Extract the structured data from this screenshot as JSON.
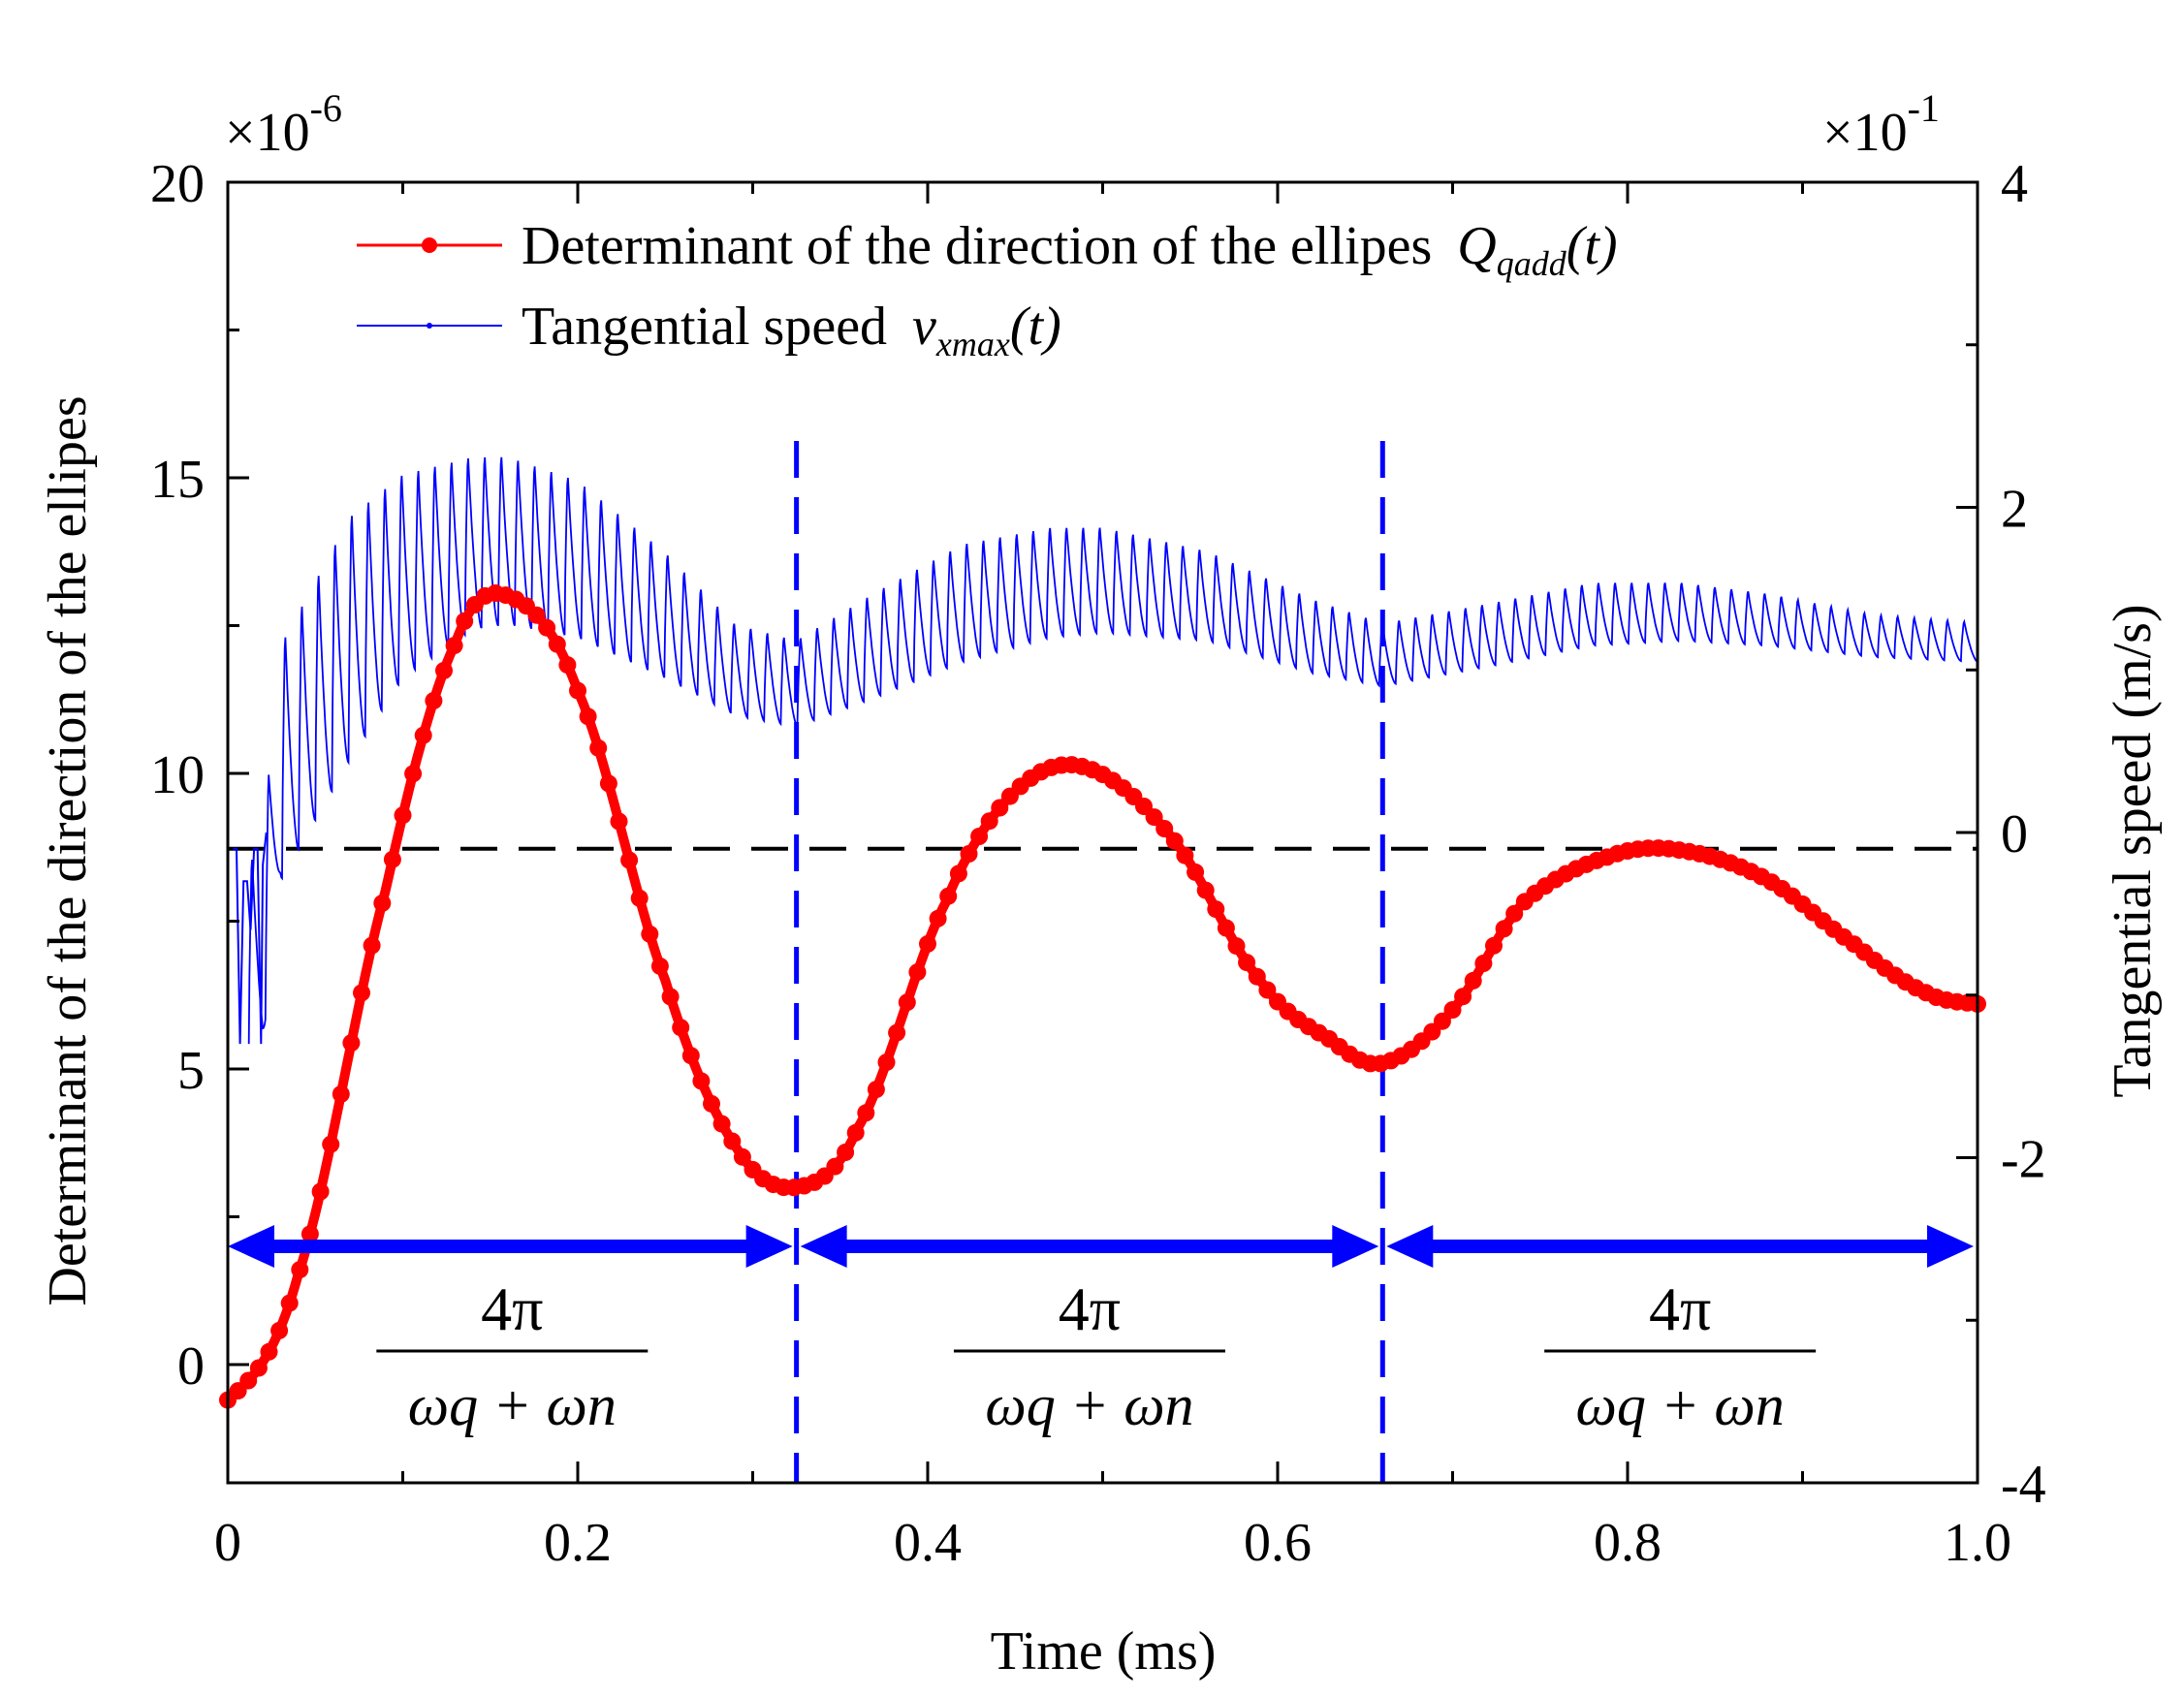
{
  "chart_data": {
    "type": "line",
    "x_axis": {
      "label": "Time (ms)",
      "range": [
        0,
        1.0
      ],
      "ticks": [
        0,
        0.2,
        0.4,
        0.6,
        0.8,
        1.0
      ],
      "tick_labels": [
        "0",
        "0.2",
        "0.4",
        "0.6",
        "0.8",
        "1.0"
      ]
    },
    "y_axis_left": {
      "label": "Determinant of the direction of the ellipes",
      "range": [
        -2,
        20
      ],
      "ticks": [
        0,
        5,
        10,
        15,
        20
      ],
      "tick_labels": [
        "0",
        "5",
        "10",
        "15",
        "20"
      ],
      "multiplier_base": "×10",
      "multiplier_exp": "-6"
    },
    "y_axis_right": {
      "label": "Tangential speed (m/s)",
      "range": [
        -4,
        4
      ],
      "ticks": [
        -4,
        -2,
        0,
        2,
        4
      ],
      "tick_labels": [
        "-4",
        "-2",
        "0",
        "2",
        "4"
      ],
      "multiplier_base": "×10",
      "multiplier_exp": "-1"
    },
    "legend": [
      {
        "text": "Determinant of the direction of the ellipes",
        "symbol": "Q",
        "subscript": "qadd",
        "arg": "(t)",
        "color": "#ff0000"
      },
      {
        "text": "Tangential speed",
        "symbol": "v",
        "subscript": "xmax",
        "arg": "(t)",
        "color": "#0000ff"
      }
    ],
    "series": [
      {
        "name": "Q_qadd(t)",
        "axis": "left",
        "color": "#ff0000",
        "x": [
          0.0,
          0.04,
          0.09,
          0.13,
          0.16,
          0.2,
          0.25,
          0.29,
          0.325,
          0.36,
          0.41,
          0.45,
          0.49,
          0.54,
          0.59,
          0.63,
          0.66,
          0.7,
          0.74,
          0.79,
          0.83,
          0.88,
          0.93,
          0.97,
          1.0
        ],
        "y": [
          -0.6,
          1.5,
          8.0,
          12.2,
          13.0,
          11.4,
          6.5,
          3.7,
          3.0,
          4.0,
          7.8,
          9.7,
          10.1,
          8.9,
          6.5,
          5.5,
          5.1,
          6.0,
          7.8,
          8.6,
          8.7,
          8.2,
          7.1,
          6.3,
          6.1
        ]
      },
      {
        "name": "v_xmax(t)",
        "axis": "right",
        "color": "#0000ff",
        "oscillation_period_ms": 0.0095,
        "x": [
          0.0,
          0.01,
          0.02,
          0.03,
          0.07,
          0.1,
          0.14,
          0.16,
          0.2,
          0.25,
          0.29,
          0.325,
          0.37,
          0.42,
          0.47,
          0.5,
          0.56,
          0.62,
          0.66,
          0.72,
          0.78,
          0.83,
          0.88,
          0.94,
          1.0
        ],
        "lower": [
          -1.3,
          -1.3,
          -1.3,
          -0.3,
          0.45,
          0.95,
          1.25,
          1.28,
          1.2,
          0.95,
          0.72,
          0.65,
          0.83,
          1.05,
          1.2,
          1.23,
          1.18,
          0.98,
          0.9,
          1.02,
          1.15,
          1.18,
          1.15,
          1.08,
          1.05
        ],
        "upper": [
          -0.5,
          -0.2,
          0.0,
          1.2,
          2.0,
          2.25,
          2.35,
          2.35,
          2.2,
          1.75,
          1.3,
          1.2,
          1.5,
          1.8,
          1.9,
          1.9,
          1.75,
          1.45,
          1.3,
          1.42,
          1.55,
          1.55,
          1.48,
          1.35,
          1.3
        ]
      }
    ],
    "reference_lines": [
      {
        "type": "horizontal",
        "axis": "right",
        "value": -0.1,
        "style": "dashed",
        "color": "#000000"
      },
      {
        "type": "vertical",
        "x": 0.325,
        "style": "dashed",
        "color": "#0000ff"
      },
      {
        "type": "vertical",
        "x": 0.66,
        "style": "dashed",
        "color": "#0000ff"
      }
    ],
    "annotations": [
      {
        "from": 0.0,
        "to": 0.325,
        "numerator": "4π",
        "denominator": "ωq + ωn",
        "arrow_y": 2.0
      },
      {
        "from": 0.325,
        "to": 0.66,
        "numerator": "4π",
        "denominator": "ωq + ωn",
        "arrow_y": 2.0
      },
      {
        "from": 0.66,
        "to": 1.0,
        "numerator": "4π",
        "denominator": "ωq + ωn",
        "arrow_y": 2.0
      }
    ]
  }
}
